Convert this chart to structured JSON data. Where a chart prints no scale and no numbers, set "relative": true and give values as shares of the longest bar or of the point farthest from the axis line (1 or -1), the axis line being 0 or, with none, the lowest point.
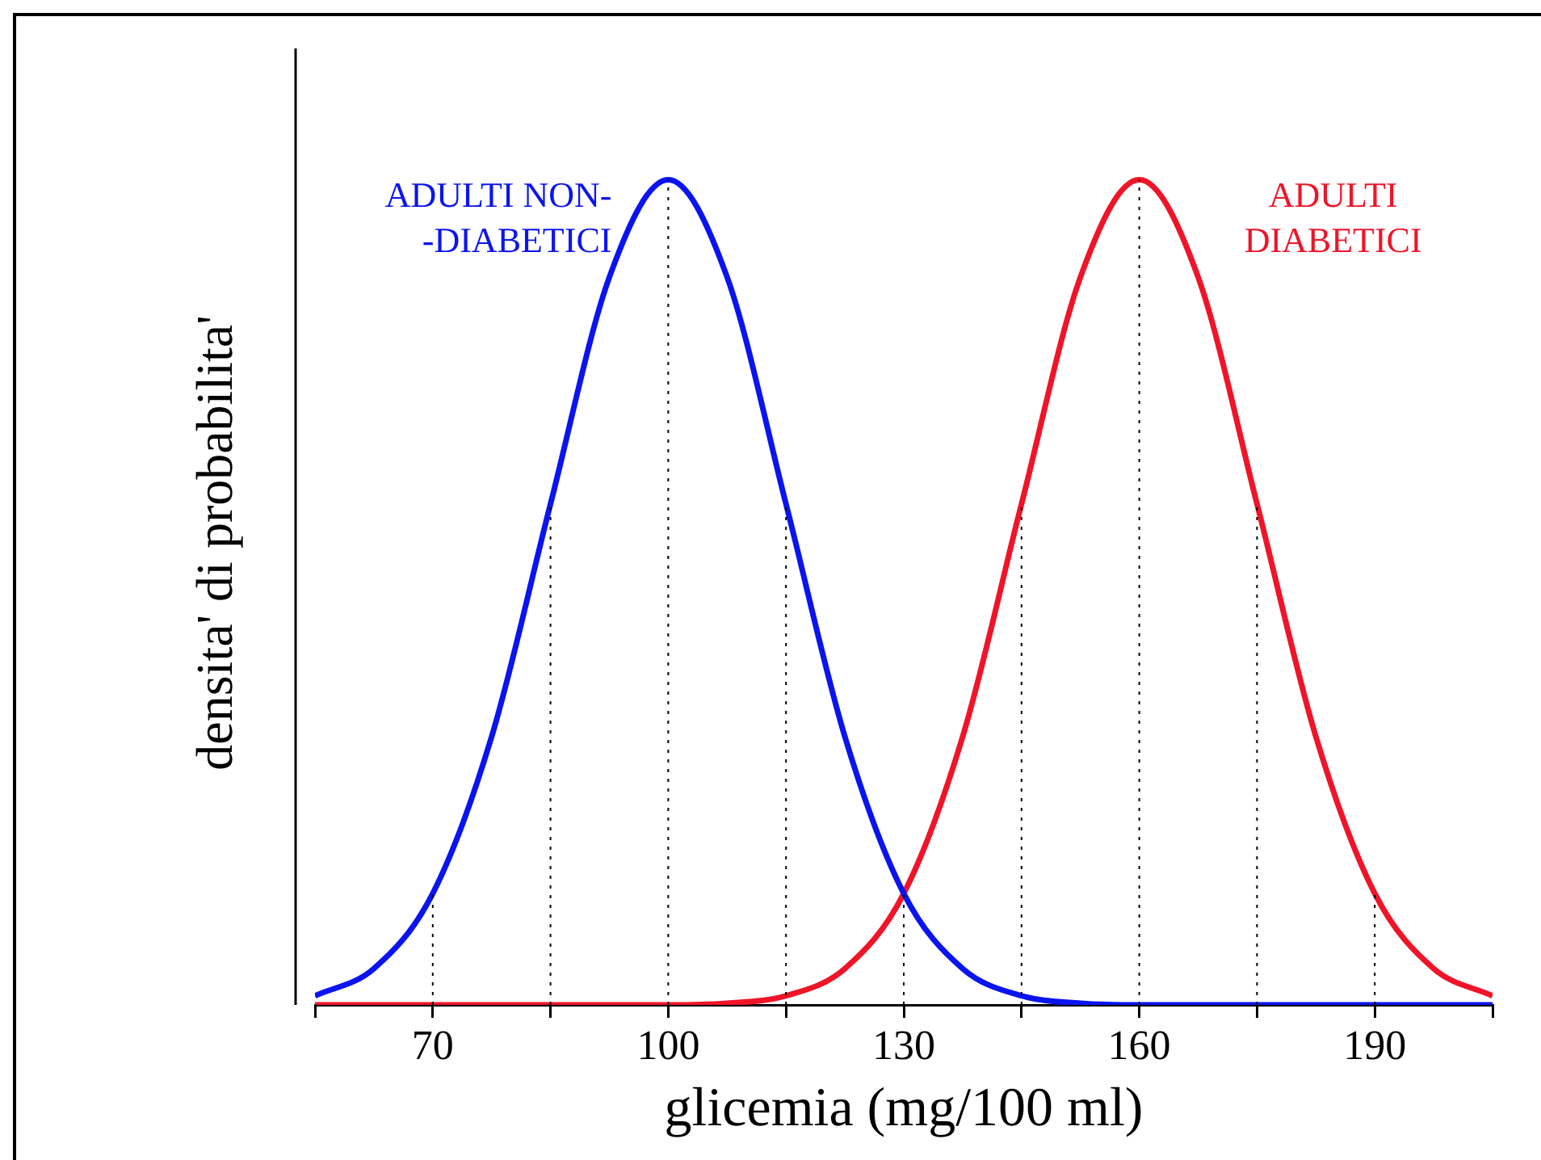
{
  "chart_data": {
    "type": "line",
    "xlabel": "glicemia (mg/100 ml)",
    "ylabel": "densita' di probabilita'",
    "relative": true,
    "legend": false,
    "grid": false,
    "marker": "none",
    "line_style": "solid",
    "x": [
      55,
      62.5,
      70,
      77.5,
      85,
      92.5,
      100,
      107.5,
      115,
      122.5,
      130,
      137.5,
      145,
      152.5,
      160,
      167.5,
      175,
      182.5,
      190,
      197.5,
      205
    ],
    "xlim": [
      55,
      205
    ],
    "xticks": [
      {
        "value": 55,
        "label": null
      },
      70,
      {
        "value": 85,
        "label": null
      },
      100,
      {
        "value": 115,
        "label": null
      },
      130,
      {
        "value": 145,
        "label": null
      },
      160,
      {
        "value": 175,
        "label": null
      },
      190,
      {
        "value": 205,
        "label": null
      }
    ],
    "series": [
      {
        "name": "ADULTI NON-\n-DIABETICI",
        "color": "#0a14f0",
        "values": [
          0.011,
          0.044,
          0.135,
          0.325,
          0.607,
          0.882,
          1,
          0.882,
          0.607,
          0.325,
          0.135,
          0.044,
          0.011,
          0.002,
          0,
          0,
          0,
          0,
          0,
          0,
          0
        ]
      },
      {
        "name": "ADULTI\nDIABETICI",
        "color": "#f01428",
        "values": [
          0,
          0,
          0,
          0,
          0,
          0,
          0,
          0.002,
          0.011,
          0.044,
          0.135,
          0.325,
          0.607,
          0.882,
          1,
          0.882,
          0.607,
          0.325,
          0.135,
          0.044,
          0.011
        ]
      }
    ],
    "ref_lines": [
      {
        "axis": "x",
        "value": 70,
        "line_style": "dotted"
      },
      {
        "axis": "x",
        "value": 85,
        "line_style": "dotted"
      },
      {
        "axis": "x",
        "value": 100,
        "line_style": "dotted"
      },
      {
        "axis": "x",
        "value": 115,
        "line_style": "dotted"
      },
      {
        "axis": "x",
        "value": 130,
        "line_style": "dotted"
      },
      {
        "axis": "x",
        "value": 145,
        "line_style": "dotted"
      },
      {
        "axis": "x",
        "value": 160,
        "line_style": "dotted"
      },
      {
        "axis": "x",
        "value": 175,
        "line_style": "dotted"
      },
      {
        "axis": "x",
        "value": 190,
        "line_style": "dotted"
      }
    ]
  }
}
